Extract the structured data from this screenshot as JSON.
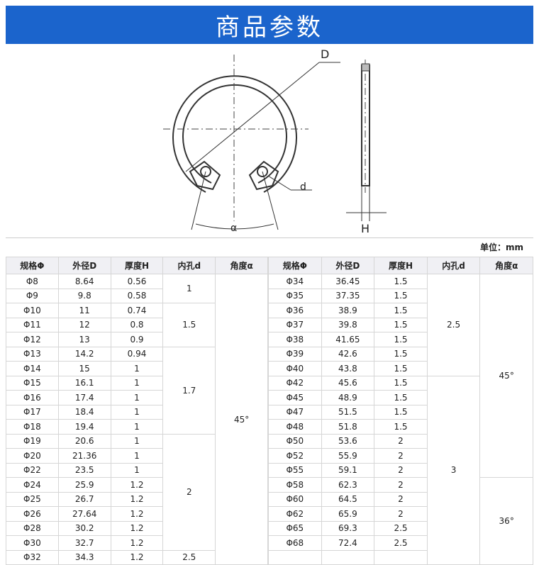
{
  "header": {
    "title": "商品参数"
  },
  "diagram": {
    "labels": {
      "outer": "D",
      "hole": "d",
      "angle": "α",
      "thickness": "H"
    }
  },
  "unit": "单位：mm",
  "table": {
    "headers": [
      "规格Φ",
      "外径D",
      "厚度H",
      "内孔d",
      "角度α"
    ],
    "left": {
      "rows": [
        [
          "Φ8",
          "8.64",
          "0.56",
          "1",
          "45°"
        ],
        [
          "Φ9",
          "9.8",
          "0.58",
          null,
          null
        ],
        [
          "Φ10",
          "11",
          "0.74",
          "1.5",
          null
        ],
        [
          "Φ11",
          "12",
          "0.8",
          null,
          null
        ],
        [
          "Φ12",
          "13",
          "0.9",
          null,
          null
        ],
        [
          "Φ13",
          "14.2",
          "0.94",
          "1.7",
          null
        ],
        [
          "Φ14",
          "15",
          "1",
          null,
          null
        ],
        [
          "Φ15",
          "16.1",
          "1",
          null,
          null
        ],
        [
          "Φ16",
          "17.4",
          "1",
          null,
          null
        ],
        [
          "Φ17",
          "18.4",
          "1",
          null,
          null
        ],
        [
          "Φ18",
          "19.4",
          "1",
          null,
          null
        ],
        [
          "Φ19",
          "20.6",
          "1",
          "2",
          null
        ],
        [
          "Φ20",
          "21.36",
          "1",
          null,
          null
        ],
        [
          "Φ22",
          "23.5",
          "1",
          null,
          null
        ],
        [
          "Φ24",
          "25.9",
          "1.2",
          null,
          null
        ],
        [
          "Φ25",
          "26.7",
          "1.2",
          null,
          null
        ],
        [
          "Φ26",
          "27.64",
          "1.2",
          null,
          null
        ],
        [
          "Φ28",
          "30.2",
          "1.2",
          null,
          null
        ],
        [
          "Φ30",
          "32.7",
          "1.2",
          null,
          null
        ],
        [
          "Φ32",
          "34.3",
          "1.2",
          "2.5",
          null
        ]
      ]
    },
    "right": {
      "rows": [
        [
          "Φ34",
          "36.45",
          "1.5",
          "2.5",
          "45°"
        ],
        [
          "Φ35",
          "37.35",
          "1.5",
          null,
          null
        ],
        [
          "Φ36",
          "38.9",
          "1.5",
          null,
          null
        ],
        [
          "Φ37",
          "39.8",
          "1.5",
          null,
          null
        ],
        [
          "Φ38",
          "41.65",
          "1.5",
          null,
          null
        ],
        [
          "Φ39",
          "42.6",
          "1.5",
          null,
          null
        ],
        [
          "Φ40",
          "43.8",
          "1.5",
          null,
          null
        ],
        [
          "Φ42",
          "45.6",
          "1.5",
          "3",
          null
        ],
        [
          "Φ45",
          "48.9",
          "1.5",
          null,
          null
        ],
        [
          "Φ47",
          "51.5",
          "1.5",
          null,
          null
        ],
        [
          "Φ48",
          "51.8",
          "1.5",
          null,
          null
        ],
        [
          "Φ50",
          "53.6",
          "2",
          null,
          null
        ],
        [
          "Φ52",
          "55.9",
          "2",
          null,
          null
        ],
        [
          "Φ55",
          "59.1",
          "2",
          null,
          null
        ],
        [
          "Φ58",
          "62.3",
          "2",
          null,
          "36°"
        ],
        [
          "Φ60",
          "64.5",
          "2",
          null,
          null
        ],
        [
          "Φ62",
          "65.9",
          "2",
          null,
          null
        ],
        [
          "Φ65",
          "69.3",
          "2.5",
          null,
          null
        ],
        [
          "Φ68",
          "72.4",
          "2.5",
          null,
          null
        ],
        [
          null,
          null,
          null,
          null,
          null
        ]
      ]
    }
  }
}
